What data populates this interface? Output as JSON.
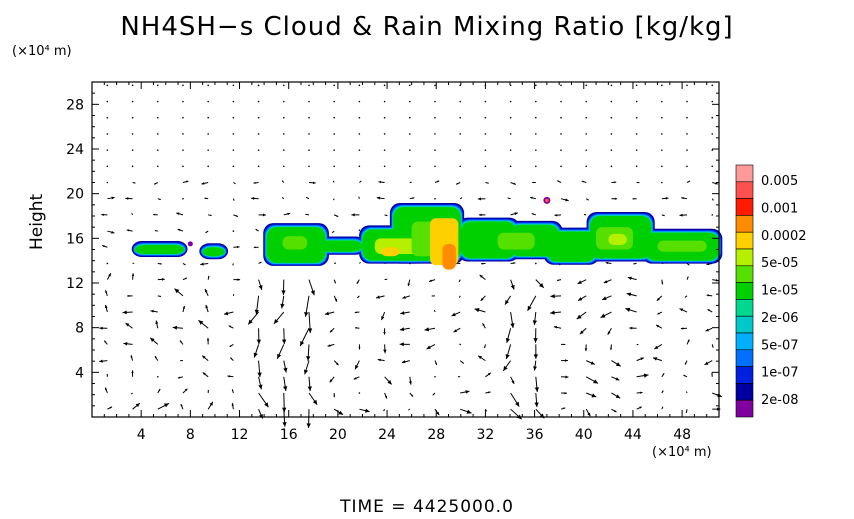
{
  "chart_data": {
    "type": "heatmap",
    "title": "NH4SH−s Cloud & Rain Mixing Ratio [kg/kg]",
    "xlabel": "",
    "ylabel": "Height",
    "x_unit_label": "(×10⁴ m)",
    "y_unit_label": "(×10⁴ m)",
    "time_label": "TIME  =  4425000.0",
    "xlim": [
      0,
      51
    ],
    "ylim": [
      0,
      30
    ],
    "x_ticks": [
      4,
      8,
      12,
      16,
      20,
      24,
      28,
      32,
      36,
      40,
      44,
      48
    ],
    "y_ticks": [
      4,
      8,
      12,
      16,
      20,
      24,
      28
    ],
    "colorbar_labels": [
      "0.005",
      "0.001",
      "0.0002",
      "5e-05",
      "1e-05",
      "2e-06",
      "5e-07",
      "1e-07",
      "2e-08"
    ],
    "colorbar_colors": [
      "#ff9a9a",
      "#ff5050",
      "#ff1a00",
      "#ff8c00",
      "#ffd000",
      "#b4f000",
      "#55e000",
      "#00d000",
      "#00d890",
      "#00c8c8",
      "#00b0ff",
      "#0070ff",
      "#0020e0",
      "#0000a0",
      "#8000a0"
    ],
    "cloud_layer": {
      "x_range": [
        2.5,
        51
      ],
      "y_range": [
        13.5,
        19.5
      ],
      "peak_value_region_x": [
        28,
        30
      ]
    },
    "wind_vectors": "quiver field of wind arrows over full domain",
    "grid": false
  }
}
